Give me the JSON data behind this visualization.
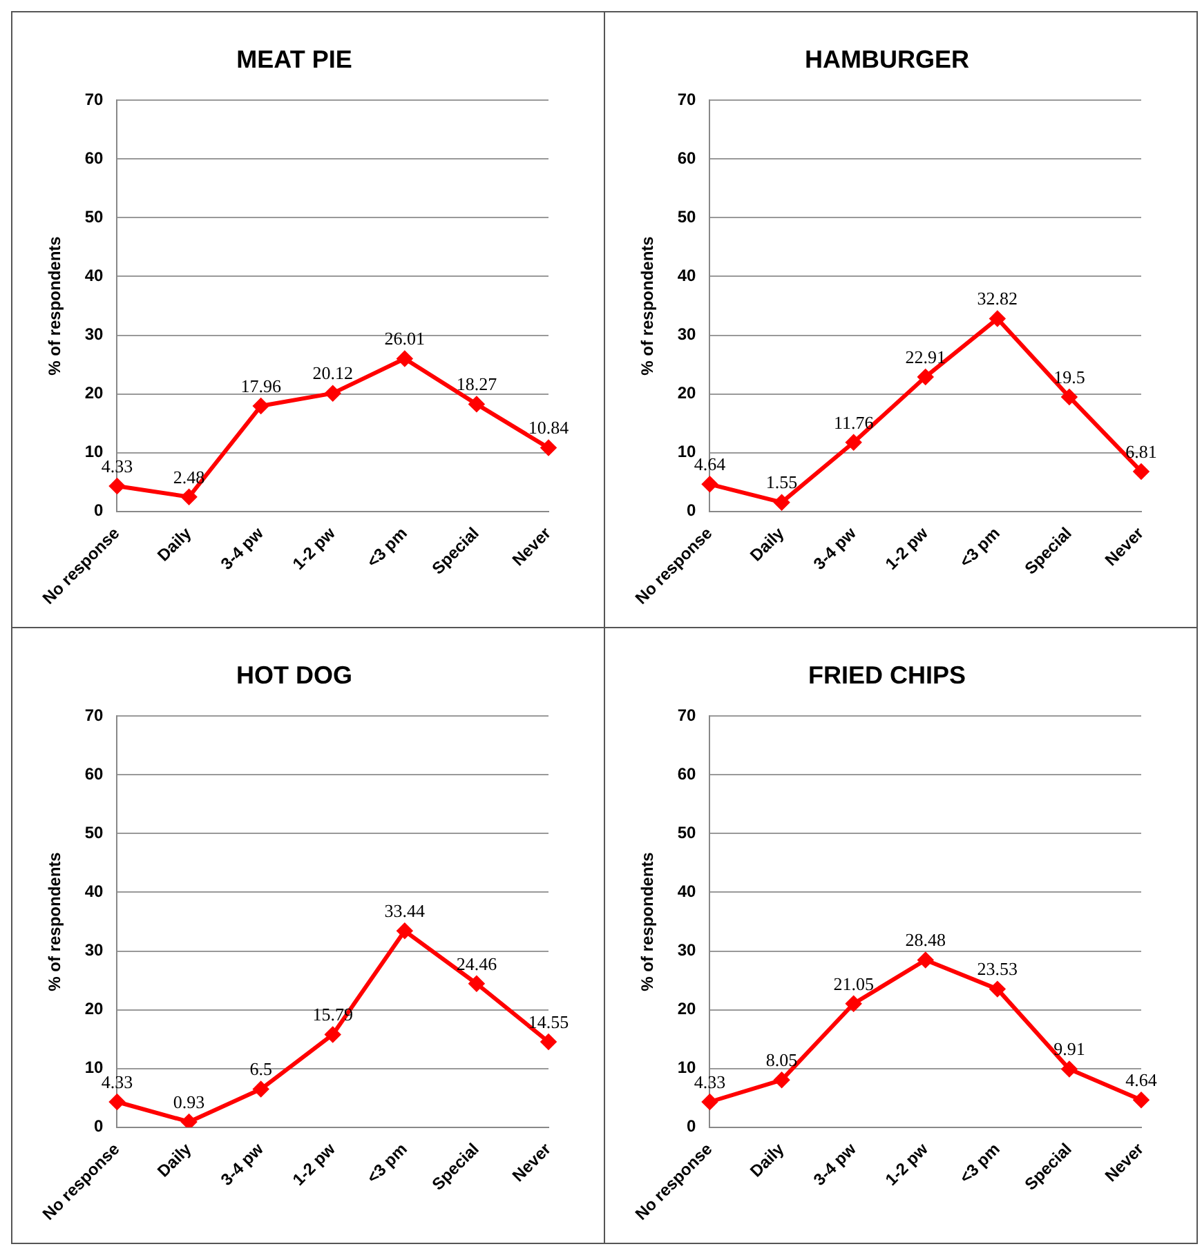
{
  "chart_data": [
    {
      "type": "line",
      "title": "MEAT PIE",
      "ylabel": "% of respondents",
      "categories": [
        "No response",
        "Daily",
        "3-4 pw",
        "1-2 pw",
        "<3 pm",
        "Special",
        "Never"
      ],
      "values": [
        4.33,
        2.48,
        17.96,
        20.12,
        26.01,
        18.27,
        10.84
      ],
      "color": "#ff0000",
      "ylim": [
        0,
        70
      ],
      "yticks": [
        0,
        10,
        20,
        30,
        40,
        50,
        60,
        70
      ],
      "grid": "y",
      "data_labels": true,
      "marker": "diamond",
      "legend": false
    },
    {
      "type": "line",
      "title": "HAMBURGER",
      "ylabel": "% of respondents",
      "categories": [
        "No response",
        "Daily",
        "3-4 pw",
        "1-2 pw",
        "<3 pm",
        "Special",
        "Never"
      ],
      "values": [
        4.64,
        1.55,
        11.76,
        22.91,
        32.82,
        19.5,
        6.81
      ],
      "color": "#ff0000",
      "ylim": [
        0,
        70
      ],
      "yticks": [
        0,
        10,
        20,
        30,
        40,
        50,
        60,
        70
      ],
      "grid": "y",
      "data_labels": true,
      "marker": "diamond",
      "legend": false
    },
    {
      "type": "line",
      "title": "HOT DOG",
      "ylabel": "% of respondents",
      "categories": [
        "No response",
        "Daily",
        "3-4 pw",
        "1-2 pw",
        "<3 pm",
        "Special",
        "Never"
      ],
      "values": [
        4.33,
        0.93,
        6.5,
        15.79,
        33.44,
        24.46,
        14.55
      ],
      "color": "#ff0000",
      "ylim": [
        0,
        70
      ],
      "yticks": [
        0,
        10,
        20,
        30,
        40,
        50,
        60,
        70
      ],
      "grid": "y",
      "data_labels": true,
      "marker": "diamond",
      "legend": false
    },
    {
      "type": "line",
      "title": "FRIED CHIPS",
      "ylabel": "% of respondents",
      "categories": [
        "No response",
        "Daily",
        "3-4 pw",
        "1-2 pw",
        "<3 pm",
        "Special",
        "Never"
      ],
      "values": [
        4.33,
        8.05,
        21.05,
        28.48,
        23.53,
        9.91,
        4.64
      ],
      "color": "#ff0000",
      "ylim": [
        0,
        70
      ],
      "yticks": [
        0,
        10,
        20,
        30,
        40,
        50,
        60,
        70
      ],
      "grid": "y",
      "data_labels": true,
      "marker": "diamond",
      "legend": false
    }
  ]
}
